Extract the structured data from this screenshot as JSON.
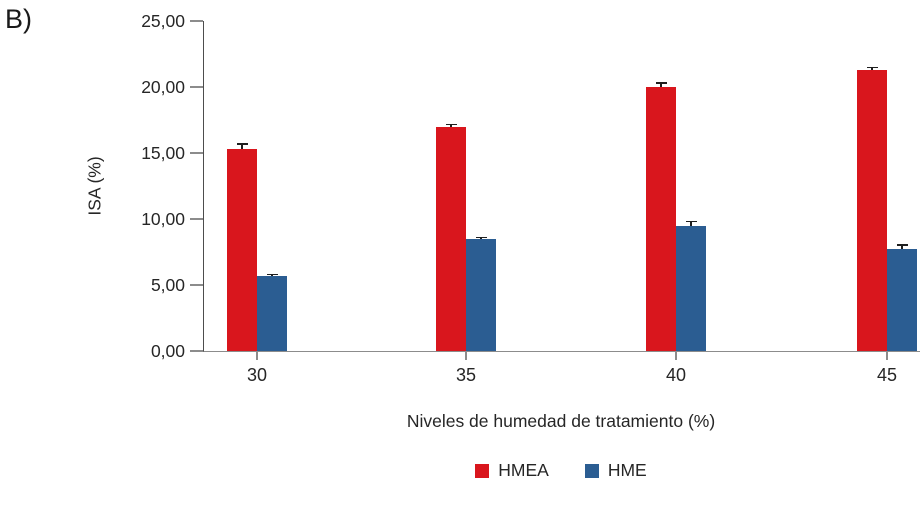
{
  "panel_label": "B)",
  "chart_data": {
    "type": "bar",
    "title": "",
    "categories": [
      "30",
      "35",
      "40",
      "45"
    ],
    "series": [
      {
        "name": "HMEA",
        "color": "#d9161d",
        "values": [
          15.3,
          17.0,
          20.0,
          21.3
        ],
        "errors": [
          0.45,
          0.2,
          0.35,
          0.25
        ]
      },
      {
        "name": "HME",
        "color": "#2b5d92",
        "values": [
          5.7,
          8.5,
          9.5,
          7.7
        ],
        "errors": [
          0.15,
          0.15,
          0.35,
          0.4
        ]
      }
    ],
    "xlabel": "Niveles de humedad de tratamiento (%)",
    "ylabel": "ISA (%)",
    "ylim": [
      0,
      25
    ],
    "ytick_step": 5,
    "ytick_values": [
      0,
      5,
      10,
      15,
      20,
      25
    ],
    "ytick_labels": [
      "0,00",
      "5,00",
      "10,00",
      "15,00",
      "20,00",
      "25,00"
    ],
    "grid": false,
    "error_bars": true,
    "legend_position": "bottom"
  },
  "colors": {
    "hmea": "#d9161d",
    "hme": "#2b5d92",
    "axis": "#8c8c8c",
    "text": "#262626",
    "error_bar": "#1f1f1f"
  }
}
